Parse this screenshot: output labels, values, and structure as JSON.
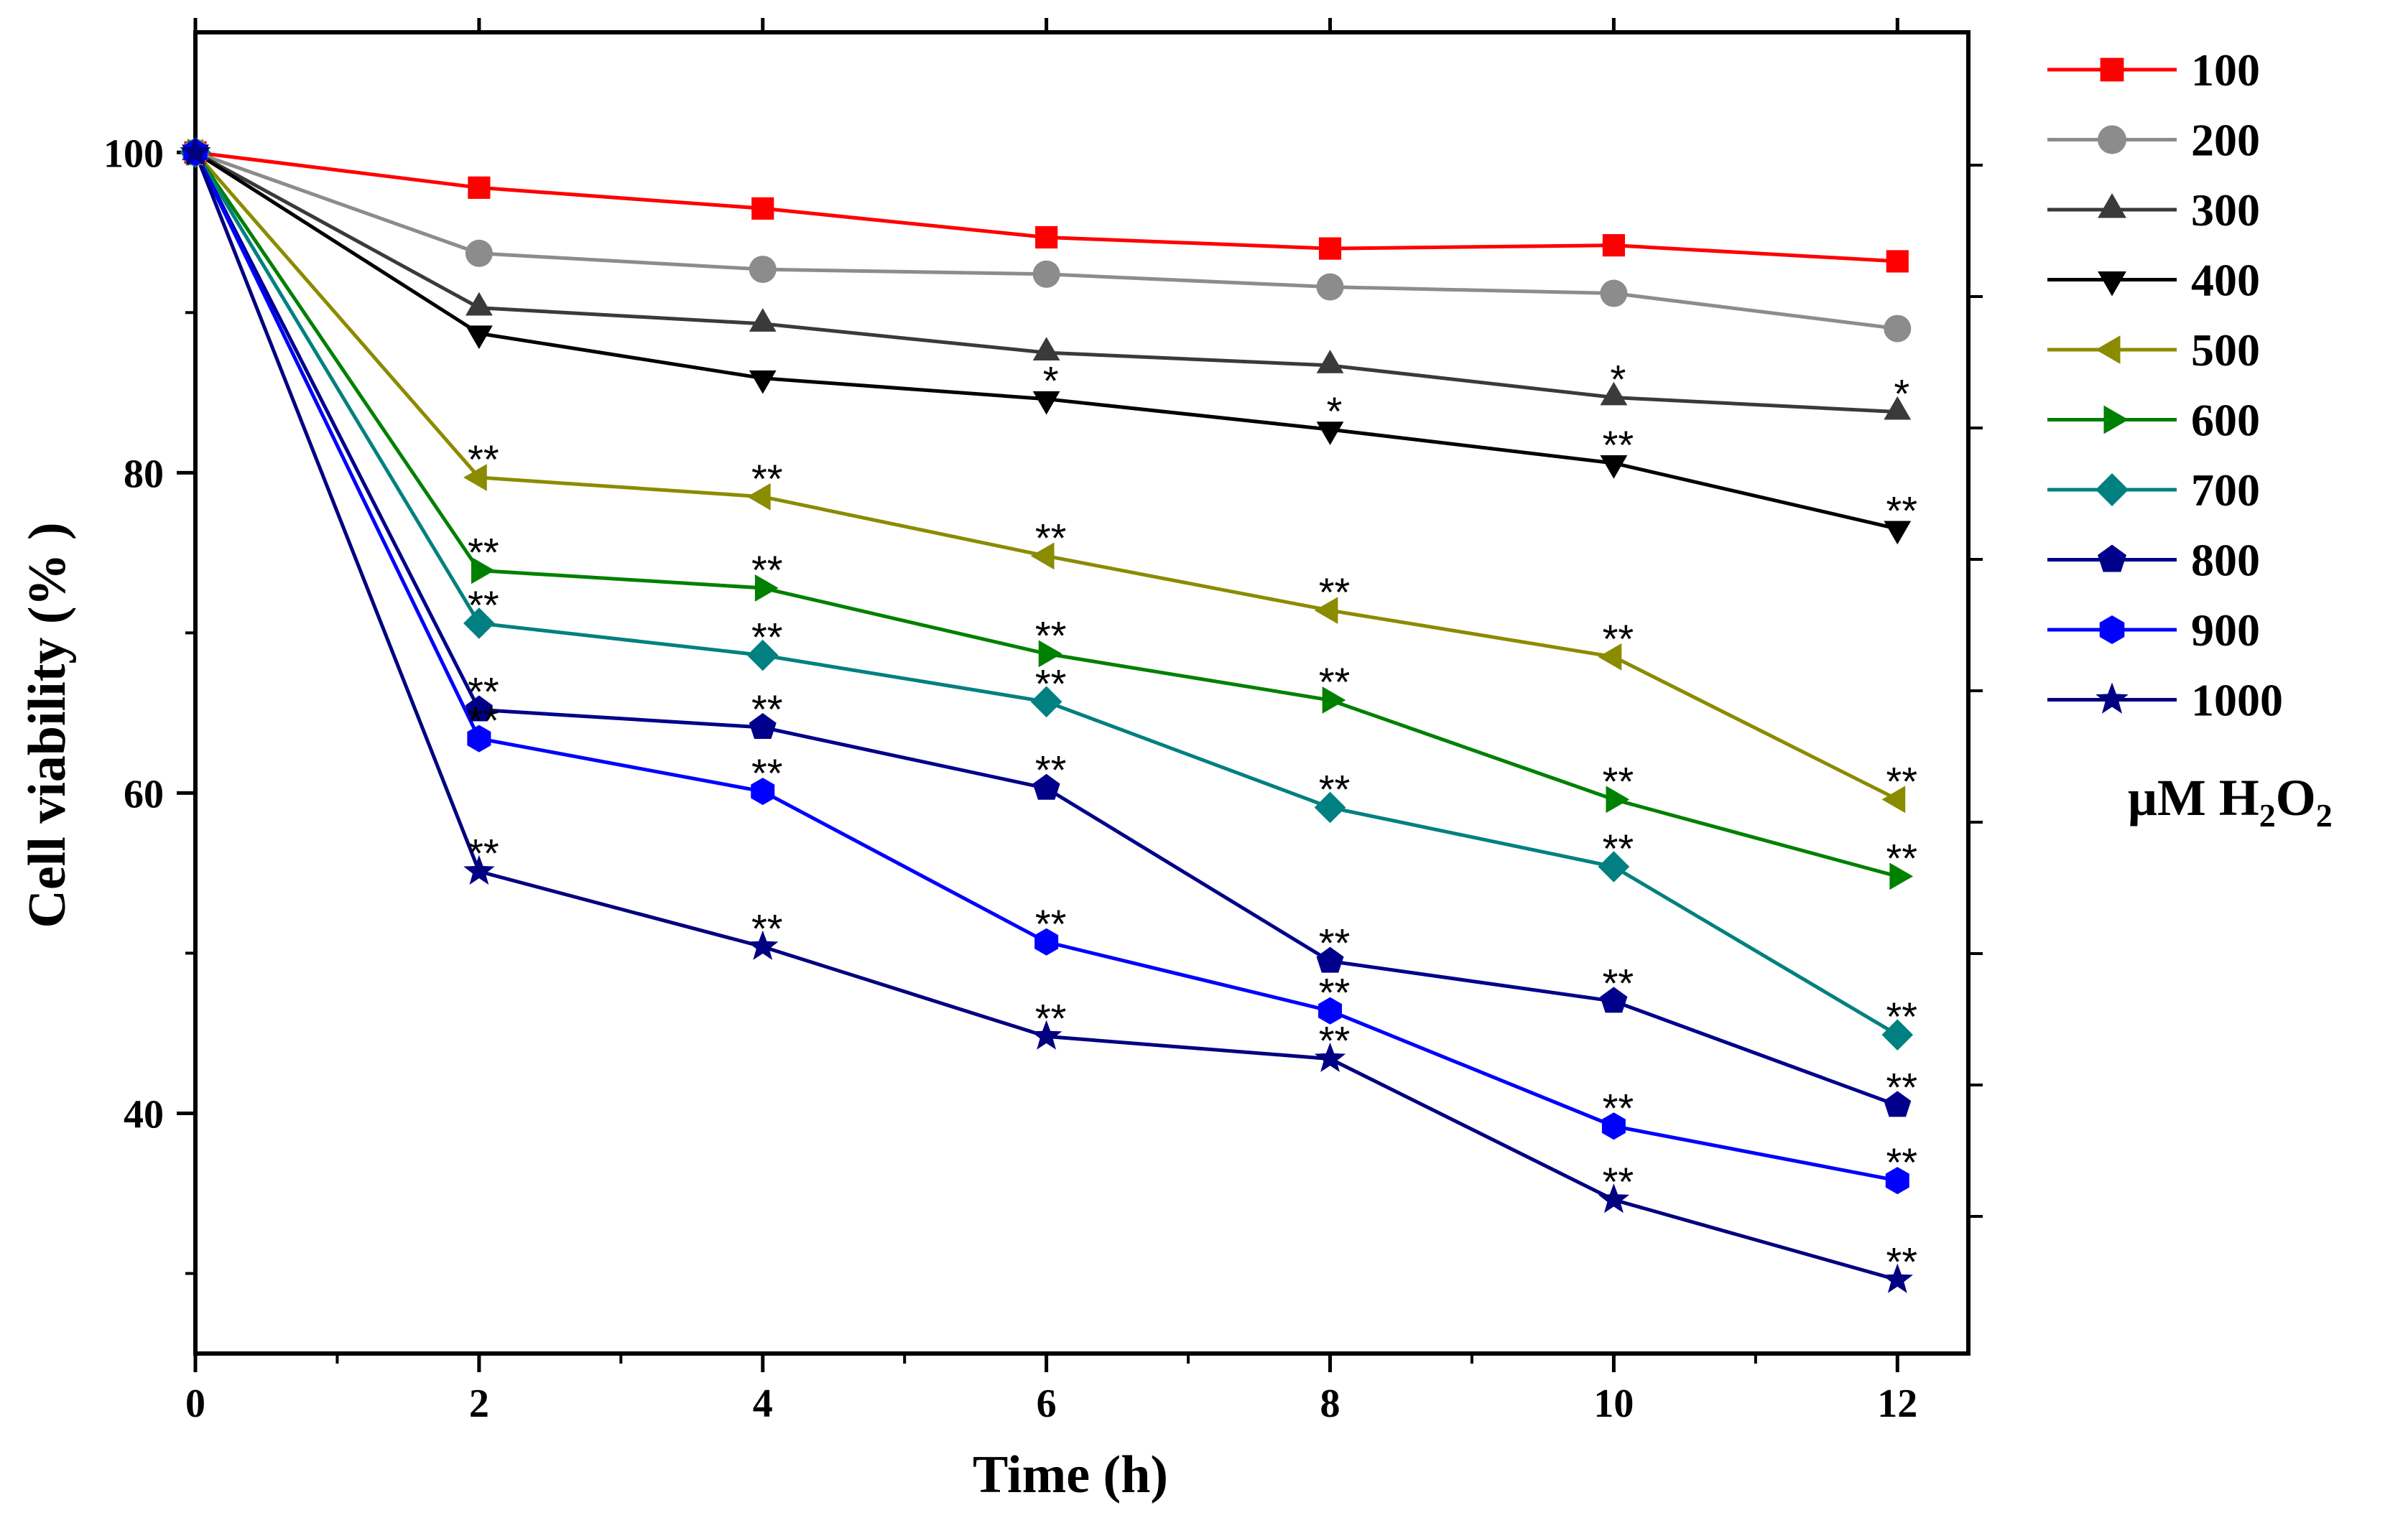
{
  "chart_data": {
    "type": "line",
    "title": "",
    "xlabel": "Time (h)",
    "ylabel": "Cell viability (% )",
    "x": [
      0,
      2,
      4,
      6,
      8,
      10,
      12
    ],
    "xlim": [
      0,
      12.5
    ],
    "ylim": [
      25,
      107.5
    ],
    "xticks": [
      "0",
      "2",
      "4",
      "6",
      "8",
      "10",
      "12"
    ],
    "yticks": [
      "40",
      "60",
      "80",
      "100"
    ],
    "legend_unit": {
      "mu": "μM H",
      "sub1": "2",
      "o": "O",
      "sub2": "2"
    },
    "series": [
      {
        "name": "100",
        "color": "#ff0000",
        "marker": "square",
        "values": [
          100,
          97.8,
          96.5,
          94.7,
          94.0,
          94.2,
          93.2
        ],
        "sig": [
          "",
          "",
          "",
          "",
          "",
          "",
          ""
        ]
      },
      {
        "name": "200",
        "color": "#8c8c8c",
        "marker": "circle",
        "values": [
          100,
          93.7,
          92.7,
          92.4,
          91.6,
          91.2,
          89.0
        ],
        "sig": [
          "",
          "",
          "",
          "",
          "",
          "",
          ""
        ]
      },
      {
        "name": "300",
        "color": "#3a3a3a",
        "marker": "triangle-up",
        "values": [
          100,
          90.3,
          89.3,
          87.5,
          86.7,
          84.7,
          83.8
        ],
        "sig": [
          "",
          "",
          "",
          "",
          "",
          "*",
          "*"
        ]
      },
      {
        "name": "400",
        "color": "#000000",
        "marker": "triangle-down",
        "values": [
          100,
          88.7,
          85.9,
          84.6,
          82.7,
          80.6,
          76.5
        ],
        "sig": [
          "",
          "",
          "",
          "*",
          "*",
          "**",
          "**"
        ]
      },
      {
        "name": "500",
        "color": "#8b8b00",
        "marker": "triangle-left",
        "values": [
          100,
          79.7,
          78.5,
          74.8,
          71.4,
          68.5,
          59.6
        ],
        "sig": [
          "",
          "**",
          "**",
          "**",
          "**",
          "**",
          "**"
        ]
      },
      {
        "name": "600",
        "color": "#008000",
        "marker": "triangle-right",
        "values": [
          100,
          73.9,
          72.8,
          68.7,
          65.8,
          59.6,
          54.8
        ],
        "sig": [
          "",
          "**",
          "**",
          "**",
          "**",
          "**",
          "**"
        ]
      },
      {
        "name": "700",
        "color": "#008080",
        "marker": "diamond",
        "values": [
          100,
          70.6,
          68.6,
          65.7,
          59.1,
          55.4,
          44.9
        ],
        "sig": [
          "",
          "**",
          "**",
          "**",
          "**",
          "**",
          "**"
        ]
      },
      {
        "name": "800",
        "color": "#00008b",
        "marker": "pentagon",
        "values": [
          100,
          65.2,
          64.1,
          60.3,
          49.5,
          47.0,
          40.5
        ],
        "sig": [
          "",
          "**",
          "**",
          "**",
          "**",
          "**",
          "**"
        ]
      },
      {
        "name": "900",
        "color": "#0000ff",
        "marker": "hexagon",
        "values": [
          100,
          63.4,
          60.1,
          50.7,
          46.4,
          39.2,
          35.8
        ],
        "sig": [
          "",
          "**",
          "**",
          "**",
          "**",
          "**",
          "**"
        ]
      },
      {
        "name": "1000",
        "color": "#000080",
        "marker": "star",
        "values": [
          100,
          55.1,
          50.4,
          44.8,
          43.4,
          34.6,
          29.6
        ],
        "sig": [
          "",
          "**",
          "**",
          "**",
          "**",
          "**",
          "**"
        ]
      }
    ]
  }
}
